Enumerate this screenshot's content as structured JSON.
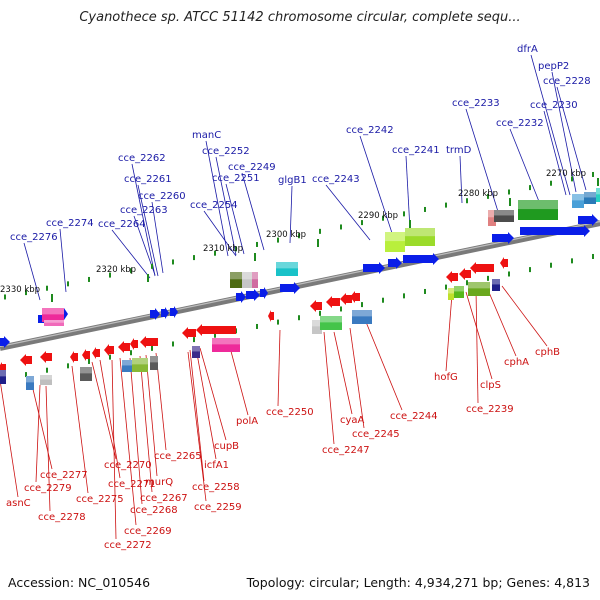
{
  "title": "Cyanothece sp. ATCC 51142 chromosome circular, complete sequ...",
  "footer": {
    "accession": "Accession: NC_010546",
    "topology": "Topology: circular; Length: 4,934,271 bp; Genes: 4,813"
  },
  "colors": {
    "forward_label": "#1a1aa6",
    "reverse_label": "#cc1111",
    "forward_gene": "#0a1ee8",
    "reverse_gene": "#ee1111",
    "backbone": "#7a7a7a",
    "tick": "#1e8a1e"
  },
  "kbp_ticks": [
    "2330 kbp",
    "2320 kbp",
    "2310 kbp",
    "2300 kbp",
    "2290 kbp",
    "2280 kbp",
    "2270 kbp"
  ],
  "top_labels": [
    "cce_2276",
    "cce_2274",
    "cce_2264",
    "cce_2263",
    "cce_2260",
    "cce_2261",
    "cce_2262",
    "manC",
    "cce_2252",
    "cce_2251",
    "cce_2249",
    "cce_2254",
    "glgB1",
    "cce_2243",
    "cce_2242",
    "cce_2241",
    "trmD",
    "cce_2233",
    "cce_2232",
    "cce_2230",
    "dfrA",
    "pepP2",
    "cce_2228"
  ],
  "bottom_labels": [
    "asnC",
    "cce_2277",
    "cce_2279",
    "cce_2278",
    "cce_2275",
    "cce_2270",
    "cce_2271",
    "cce_2272",
    "cce_2269",
    "cce_2268",
    "cce_2267",
    "murQ",
    "cce_2265",
    "cupB",
    "icfA1",
    "cce_2258",
    "cce_2259",
    "polA",
    "cce_2250",
    "cyaA",
    "cce_2245",
    "cce_2247",
    "cce_2244",
    "hofG",
    "clpS",
    "cce_2239",
    "cphA",
    "cphB"
  ]
}
